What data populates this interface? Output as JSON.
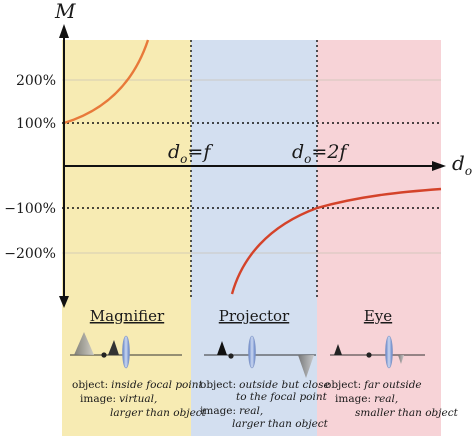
{
  "axes": {
    "y_label": "M",
    "x_label_main": "d",
    "x_label_sub": "o",
    "y_ticks": [
      "200%",
      "100%",
      "−100%",
      "−200%"
    ]
  },
  "markers": [
    {
      "main": "d",
      "sub": "o",
      "rel": "=f"
    },
    {
      "main": "d",
      "sub": "o",
      "rel": "=2f"
    }
  ],
  "zones": [
    {
      "title": "Magnifier",
      "color": "#f7ebb3",
      "object_label": "object:",
      "object_desc": "inside focal point",
      "image_label": "image:",
      "image_desc": [
        "virtual,",
        "larger than object"
      ]
    },
    {
      "title": "Projector",
      "color": "#d3dff0",
      "object_label": "object:",
      "object_desc": [
        "outside but close",
        "to the focal point"
      ],
      "image_label": "image:",
      "image_desc": [
        "real,",
        "larger than object"
      ]
    },
    {
      "title": "Eye",
      "color": "#f7d3d7",
      "object_label": "object:",
      "object_desc": "far outside",
      "image_label": "image:",
      "image_desc": [
        "real,",
        "smaller than object"
      ]
    }
  ],
  "colors": {
    "curve_magnifier": "#e8793a",
    "curve_projector_eye": "#d4432a",
    "lens": "#8fa9d8",
    "axis": "#111111"
  }
}
